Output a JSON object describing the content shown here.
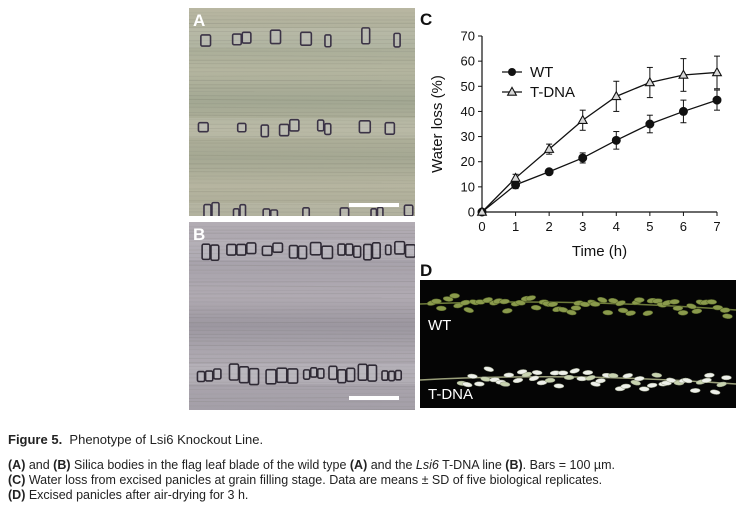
{
  "panels": {
    "a": {
      "letter": "A"
    },
    "b": {
      "letter": "B"
    },
    "c": {
      "letter": "C"
    },
    "d": {
      "letter": "D",
      "labels": [
        "WT",
        "T-DNA"
      ]
    }
  },
  "chart_data": {
    "type": "line",
    "x": [
      0,
      1,
      2,
      3,
      4,
      5,
      6,
      7
    ],
    "xlabel": "Time (h)",
    "ylabel": "Water loss (%)",
    "xlim": [
      0,
      7
    ],
    "ylim": [
      0,
      70
    ],
    "xticks": [
      "0",
      "1",
      "2",
      "3",
      "4",
      "5",
      "6",
      "7"
    ],
    "yticks": [
      "0",
      "10",
      "20",
      "30",
      "40",
      "50",
      "60",
      "70"
    ],
    "legend_position": "top-left",
    "grid": false,
    "series": [
      {
        "name": "WT",
        "marker": "filled-circle",
        "values": [
          0,
          10.8,
          16,
          21.5,
          28.5,
          35,
          40,
          44.5
        ],
        "errors": [
          0,
          1.5,
          1.0,
          2.0,
          3.5,
          3.5,
          4.5,
          4.0
        ]
      },
      {
        "name": "T-DNA",
        "marker": "open-triangle",
        "values": [
          0,
          13.5,
          25,
          36.5,
          46,
          51.5,
          54.5,
          55.5
        ],
        "errors": [
          0,
          1.5,
          2.0,
          4.0,
          6.0,
          6.0,
          6.5,
          6.5
        ]
      }
    ]
  },
  "caption": {
    "figure_label": "Figure 5.",
    "figure_title": "Phenotype of Lsi6 Knockout Line.",
    "lines": [
      {
        "parts": [
          "(A)",
          " and ",
          "(B)",
          " Silica bodies in the flag leaf blade of the wild type ",
          "(A)",
          " and the ",
          "Lsi6",
          " T-DNA line ",
          "(B)",
          ". Bars = 100 µm."
        ]
      },
      {
        "parts": [
          "(C)",
          " Water loss from excised panicles at grain filling stage. Data are means ± SD of five biological replicates."
        ]
      },
      {
        "parts": [
          "(D)",
          " Excised panicles after air-drying for 3 h."
        ]
      }
    ]
  }
}
